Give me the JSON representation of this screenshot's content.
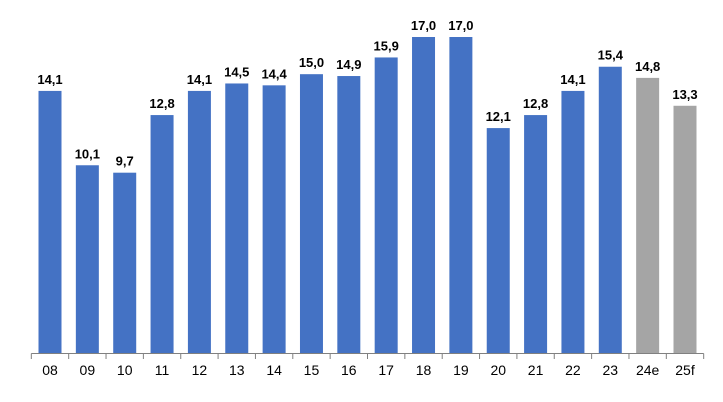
{
  "colors": {
    "actual": "#4472C4",
    "forecast": "#A5A5A5",
    "axis": "#808080",
    "text": "#000000"
  },
  "chart_data": {
    "type": "bar",
    "categories": [
      "08",
      "09",
      "10",
      "11",
      "12",
      "13",
      "14",
      "15",
      "16",
      "17",
      "18",
      "19",
      "20",
      "21",
      "22",
      "23",
      "24e",
      "25f"
    ],
    "values": [
      14.1,
      10.1,
      9.7,
      12.8,
      14.1,
      14.5,
      14.4,
      15.0,
      14.9,
      15.9,
      17.0,
      17.0,
      12.1,
      12.8,
      14.1,
      15.4,
      14.8,
      13.3
    ],
    "value_labels": [
      "14,1",
      "10,1",
      "9,7",
      "12,8",
      "14,1",
      "14,5",
      "14,4",
      "15,0",
      "14,9",
      "15,9",
      "17,0",
      "17,0",
      "12,1",
      "12,8",
      "14,1",
      "15,4",
      "14,8",
      "13,3"
    ],
    "bar_kind": [
      "actual",
      "actual",
      "actual",
      "actual",
      "actual",
      "actual",
      "actual",
      "actual",
      "actual",
      "actual",
      "actual",
      "actual",
      "actual",
      "actual",
      "actual",
      "actual",
      "forecast",
      "forecast"
    ],
    "title": "",
    "xlabel": "",
    "ylabel": "",
    "ylim": [
      0,
      17.0
    ],
    "grid": false,
    "legend": "none"
  }
}
